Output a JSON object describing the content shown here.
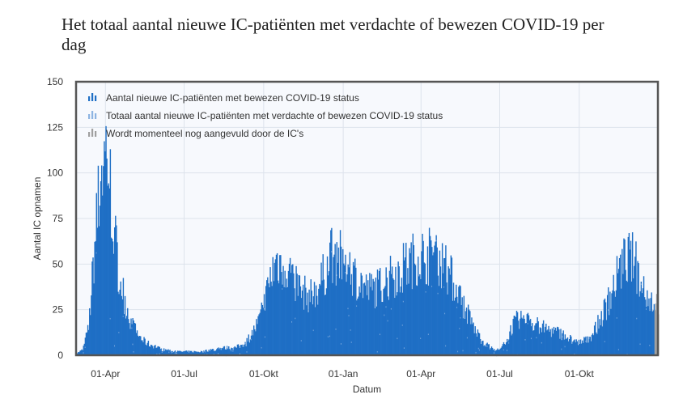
{
  "title": "Het totaal aantal nieuwe IC-patiënten met verdachte of bewezen COVID-19 per dag",
  "chart_data": {
    "type": "bar",
    "xlabel": "Datum",
    "ylabel": "Aantal IC opnamen",
    "ylim": [
      0,
      150
    ],
    "yticks": [
      0,
      25,
      50,
      75,
      100,
      125,
      150
    ],
    "xlim": [
      "2020-02-27",
      "2021-12-31"
    ],
    "xticks": [
      {
        "label": "01-Apr",
        "date": "2020-04-01"
      },
      {
        "label": "01-Jul",
        "date": "2020-07-01"
      },
      {
        "label": "01-Okt",
        "date": "2020-10-01"
      },
      {
        "label": "01-Jan",
        "date": "2021-01-01"
      },
      {
        "label": "01-Apr",
        "date": "2021-04-01"
      },
      {
        "label": "01-Jul",
        "date": "2021-07-01"
      },
      {
        "label": "01-Okt",
        "date": "2021-10-01"
      }
    ],
    "grid": true,
    "legend_position": "top-left",
    "series": [
      {
        "name": "Aantal nieuwe IC-patiënten met bewezen COVID-19 status",
        "color": "#1f6fc5"
      },
      {
        "name": "Totaal aantal nieuwe IC-patiënten met verdachte of bewezen COVID-19 status",
        "color": "#8db4e2"
      },
      {
        "name": "Wordt momenteel nog aangevuld door de IC's",
        "color": "#a0a0a0"
      }
    ],
    "weekly_values": [
      {
        "week_start": "2020-02-27",
        "value": 1
      },
      {
        "week_start": "2020-03-05",
        "value": 3
      },
      {
        "week_start": "2020-03-12",
        "value": 15
      },
      {
        "week_start": "2020-03-19",
        "value": 60
      },
      {
        "week_start": "2020-03-26",
        "value": 100
      },
      {
        "week_start": "2020-04-02",
        "value": 115
      },
      {
        "week_start": "2020-04-09",
        "value": 75
      },
      {
        "week_start": "2020-04-16",
        "value": 45
      },
      {
        "week_start": "2020-04-23",
        "value": 30
      },
      {
        "week_start": "2020-04-30",
        "value": 18
      },
      {
        "week_start": "2020-05-07",
        "value": 12
      },
      {
        "week_start": "2020-05-14",
        "value": 8
      },
      {
        "week_start": "2020-05-21",
        "value": 6
      },
      {
        "week_start": "2020-05-28",
        "value": 5
      },
      {
        "week_start": "2020-06-04",
        "value": 3
      },
      {
        "week_start": "2020-06-11",
        "value": 3
      },
      {
        "week_start": "2020-06-18",
        "value": 2
      },
      {
        "week_start": "2020-06-25",
        "value": 2
      },
      {
        "week_start": "2020-07-02",
        "value": 2
      },
      {
        "week_start": "2020-07-09",
        "value": 2
      },
      {
        "week_start": "2020-07-16",
        "value": 2
      },
      {
        "week_start": "2020-07-23",
        "value": 2
      },
      {
        "week_start": "2020-07-30",
        "value": 3
      },
      {
        "week_start": "2020-08-06",
        "value": 3
      },
      {
        "week_start": "2020-08-13",
        "value": 4
      },
      {
        "week_start": "2020-08-20",
        "value": 4
      },
      {
        "week_start": "2020-08-27",
        "value": 4
      },
      {
        "week_start": "2020-09-03",
        "value": 5
      },
      {
        "week_start": "2020-09-10",
        "value": 7
      },
      {
        "week_start": "2020-09-17",
        "value": 12
      },
      {
        "week_start": "2020-09-24",
        "value": 18
      },
      {
        "week_start": "2020-10-01",
        "value": 28
      },
      {
        "week_start": "2020-10-08",
        "value": 42
      },
      {
        "week_start": "2020-10-15",
        "value": 52
      },
      {
        "week_start": "2020-10-22",
        "value": 50
      },
      {
        "week_start": "2020-10-29",
        "value": 48
      },
      {
        "week_start": "2020-11-05",
        "value": 42
      },
      {
        "week_start": "2020-11-12",
        "value": 36
      },
      {
        "week_start": "2020-11-19",
        "value": 33
      },
      {
        "week_start": "2020-11-26",
        "value": 33
      },
      {
        "week_start": "2020-12-03",
        "value": 38
      },
      {
        "week_start": "2020-12-10",
        "value": 45
      },
      {
        "week_start": "2020-12-17",
        "value": 55
      },
      {
        "week_start": "2020-12-24",
        "value": 54
      },
      {
        "week_start": "2020-12-31",
        "value": 52
      },
      {
        "week_start": "2021-01-07",
        "value": 48
      },
      {
        "week_start": "2021-01-14",
        "value": 44
      },
      {
        "week_start": "2021-01-21",
        "value": 40
      },
      {
        "week_start": "2021-01-28",
        "value": 36
      },
      {
        "week_start": "2021-02-04",
        "value": 36
      },
      {
        "week_start": "2021-02-11",
        "value": 38
      },
      {
        "week_start": "2021-02-18",
        "value": 40
      },
      {
        "week_start": "2021-02-25",
        "value": 43
      },
      {
        "week_start": "2021-03-04",
        "value": 46
      },
      {
        "week_start": "2021-03-11",
        "value": 48
      },
      {
        "week_start": "2021-03-18",
        "value": 50
      },
      {
        "week_start": "2021-03-25",
        "value": 54
      },
      {
        "week_start": "2021-04-01",
        "value": 55
      },
      {
        "week_start": "2021-04-08",
        "value": 54
      },
      {
        "week_start": "2021-04-15",
        "value": 56
      },
      {
        "week_start": "2021-04-22",
        "value": 52
      },
      {
        "week_start": "2021-04-29",
        "value": 48
      },
      {
        "week_start": "2021-05-06",
        "value": 42
      },
      {
        "week_start": "2021-05-13",
        "value": 34
      },
      {
        "week_start": "2021-05-20",
        "value": 27
      },
      {
        "week_start": "2021-05-27",
        "value": 20
      },
      {
        "week_start": "2021-06-03",
        "value": 13
      },
      {
        "week_start": "2021-06-10",
        "value": 8
      },
      {
        "week_start": "2021-06-17",
        "value": 5
      },
      {
        "week_start": "2021-06-24",
        "value": 3
      },
      {
        "week_start": "2021-07-01",
        "value": 3
      },
      {
        "week_start": "2021-07-08",
        "value": 8
      },
      {
        "week_start": "2021-07-15",
        "value": 16
      },
      {
        "week_start": "2021-07-22",
        "value": 20
      },
      {
        "week_start": "2021-07-29",
        "value": 20
      },
      {
        "week_start": "2021-08-05",
        "value": 18
      },
      {
        "week_start": "2021-08-12",
        "value": 17
      },
      {
        "week_start": "2021-08-19",
        "value": 15
      },
      {
        "week_start": "2021-08-26",
        "value": 14
      },
      {
        "week_start": "2021-09-02",
        "value": 13
      },
      {
        "week_start": "2021-09-09",
        "value": 12
      },
      {
        "week_start": "2021-09-16",
        "value": 10
      },
      {
        "week_start": "2021-09-23",
        "value": 8
      },
      {
        "week_start": "2021-09-30",
        "value": 7
      },
      {
        "week_start": "2021-10-07",
        "value": 8
      },
      {
        "week_start": "2021-10-14",
        "value": 11
      },
      {
        "week_start": "2021-10-21",
        "value": 16
      },
      {
        "week_start": "2021-10-28",
        "value": 23
      },
      {
        "week_start": "2021-11-04",
        "value": 31
      },
      {
        "week_start": "2021-11-11",
        "value": 40
      },
      {
        "week_start": "2021-11-18",
        "value": 48
      },
      {
        "week_start": "2021-11-25",
        "value": 54
      },
      {
        "week_start": "2021-12-02",
        "value": 52
      },
      {
        "week_start": "2021-12-09",
        "value": 44
      },
      {
        "week_start": "2021-12-16",
        "value": 36
      },
      {
        "week_start": "2021-12-23",
        "value": 30
      }
    ]
  }
}
